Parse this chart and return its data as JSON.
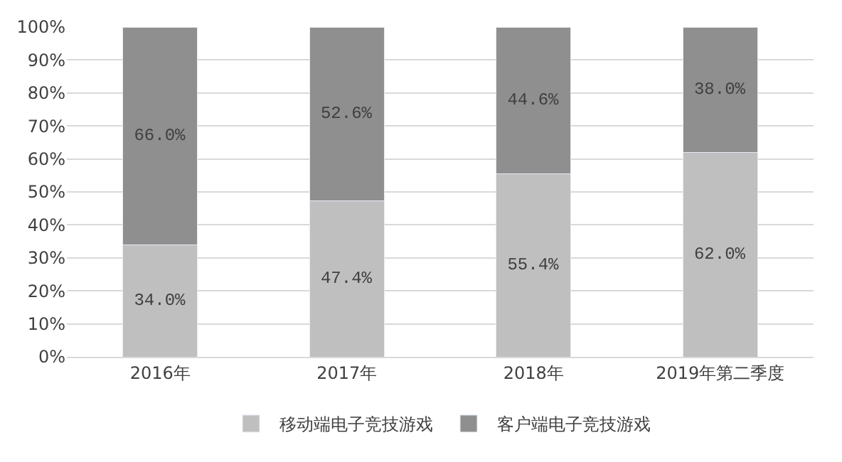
{
  "chart_data": {
    "type": "bar",
    "stacked": true,
    "categories": [
      "2016年",
      "2017年",
      "2018年",
      "2019年第二季度"
    ],
    "series": [
      {
        "name": "移动端电子竞技游戏",
        "color": "#bfbfbf",
        "values": [
          34.0,
          47.4,
          55.4,
          62.0
        ],
        "value_labels": [
          "34.0%",
          "47.4%",
          "55.4%",
          "62.0%"
        ]
      },
      {
        "name": "客户端电子竞技游戏",
        "color": "#8f8f8f",
        "values": [
          66.0,
          52.6,
          44.6,
          38.0
        ],
        "value_labels": [
          "66.0%",
          "52.6%",
          "44.6%",
          "38.0%"
        ]
      }
    ],
    "ylim": [
      0,
      100
    ],
    "yticks": [
      {
        "value": 0,
        "label": "0%"
      },
      {
        "value": 10,
        "label": "10%"
      },
      {
        "value": 20,
        "label": "20%"
      },
      {
        "value": 30,
        "label": "30%"
      },
      {
        "value": 40,
        "label": "40%"
      },
      {
        "value": 50,
        "label": "50%"
      },
      {
        "value": 60,
        "label": "60%"
      },
      {
        "value": 70,
        "label": "70%"
      },
      {
        "value": 80,
        "label": "80%"
      },
      {
        "value": 90,
        "label": "90%"
      },
      {
        "value": 100,
        "label": "100%"
      }
    ],
    "grid": "y",
    "legend": "bottom"
  }
}
